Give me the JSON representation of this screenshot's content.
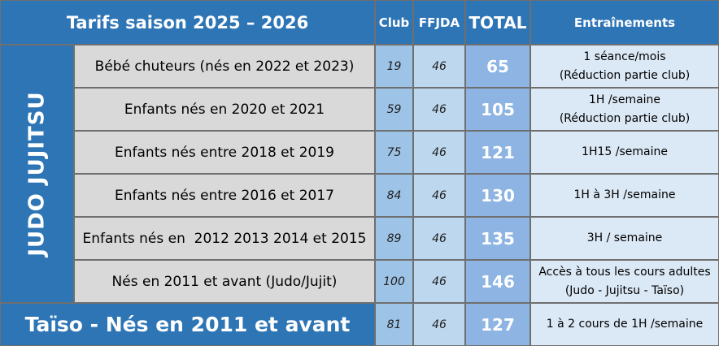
{
  "header": {
    "title": "Tarifs saison 2025 – 2026",
    "club": "Club",
    "ffjda": "FFJDA",
    "total": "TOTAL",
    "entrainements": "Entraînements"
  },
  "side_label": "JUDO JUJITSU",
  "rows": [
    {
      "category": "Bébé chuteurs (nés en 2022 et 2023)",
      "club": "19",
      "ffjda": "46",
      "total": "65",
      "entr1": "1 séance/mois",
      "entr2": "(Réduction partie club)"
    },
    {
      "category": "Enfants nés en 2020 et 2021",
      "club": "59",
      "ffjda": "46",
      "total": "105",
      "entr1": "1H /semaine",
      "entr2": "(Réduction partie club)"
    },
    {
      "category": "Enfants nés entre 2018 et 2019",
      "club": "75",
      "ffjda": "46",
      "total": "121",
      "entr1": "1H15 /semaine",
      "entr2": ""
    },
    {
      "category": "Enfants nés entre 2016 et 2017",
      "club": "84",
      "ffjda": "46",
      "total": "130",
      "entr1": "1H à 3H /semaine",
      "entr2": ""
    },
    {
      "category": "Enfants nés en  2012 2013 2014 et 2015",
      "club": "89",
      "ffjda": "46",
      "total": "135",
      "entr1": "3H / semaine",
      "entr2": ""
    },
    {
      "category": "Nés en 2011 et avant (Judo/Jujit)",
      "club": "100",
      "ffjda": "46",
      "total": "146",
      "entr1": "Accès à tous les cours adultes",
      "entr2": "(Judo - Jujitsu - Taïso)"
    }
  ],
  "taiso": {
    "category": "Taïso - Nés en 2011 et avant",
    "club": "81",
    "ffjda": "46",
    "total": "127",
    "entr": "1 à 2 cours de 1H /semaine"
  },
  "colors": {
    "header_blue": "#2e75b6",
    "grey": "#d9d9d9",
    "club_blue": "#9dc3e6",
    "ffjda_blue": "#bdd7ee",
    "total_blue": "#8db4e2"
  }
}
